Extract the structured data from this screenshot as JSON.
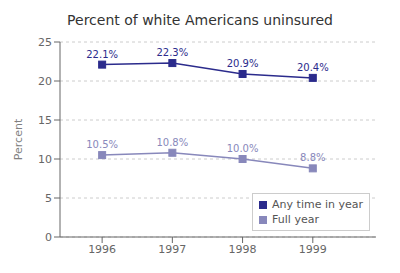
{
  "chart_data": {
    "type": "line",
    "title": "Percent of white Americans uninsured",
    "x": [
      1996,
      1997,
      1998,
      1999
    ],
    "series": [
      {
        "name": "Any time in year",
        "color": "#2b2b8c",
        "values": [
          22.1,
          22.3,
          20.9,
          20.4
        ],
        "value_labels": [
          "22.1%",
          "22.3%",
          "20.9%",
          "20.4%"
        ],
        "marker": "square",
        "line_style": "solid"
      },
      {
        "name": "Full year",
        "color": "#8888bb",
        "values": [
          10.5,
          10.8,
          10.0,
          8.8
        ],
        "value_labels": [
          "10.5%",
          "10.8%",
          "10.0%",
          "8.8%"
        ],
        "marker": "square",
        "line_style": "solid"
      }
    ],
    "ylabel": "Percent",
    "xlim": [
      1995.4,
      1999.9
    ],
    "xticks": [
      1996,
      1997,
      1998,
      1999
    ],
    "ylim": [
      0,
      25
    ],
    "yticks": [
      0,
      5,
      10,
      15,
      20,
      25
    ],
    "grid": "y",
    "legend": "lower right",
    "data_labels": true
  }
}
